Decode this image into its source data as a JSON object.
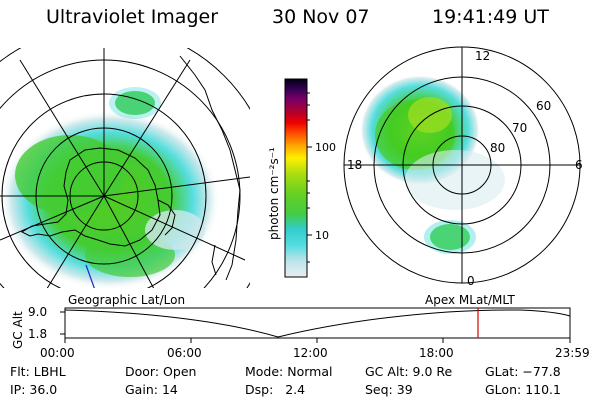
{
  "header": {
    "instrument": "Ultraviolet Imager",
    "date": "30 Nov 07",
    "time": "19:41:49 UT"
  },
  "colorbar": {
    "label": "photon cm⁻²s⁻¹",
    "ticks": [
      "100",
      "10"
    ]
  },
  "left_panel": {
    "caption": "Geographic Lat/Lon"
  },
  "right_panel": {
    "caption": "Apex MLat/MLT",
    "mlt_labels": [
      "12",
      "18",
      "6",
      "0"
    ],
    "mlat_labels": [
      "60",
      "70",
      "80"
    ]
  },
  "altitude_plot": {
    "ylabel": "GC Alt",
    "yticks": [
      "9.0",
      "1.8"
    ],
    "time_ticks": [
      "00:00",
      "06:00",
      "12:00",
      "18:00",
      "23:59"
    ],
    "marker_color": "#e00000"
  },
  "info": {
    "row1": [
      {
        "label": "Flt:",
        "value": "LBHL"
      },
      {
        "label": "Door:",
        "value": "Open"
      },
      {
        "label": "Mode:",
        "value": "Normal"
      },
      {
        "label": "GC Alt:",
        "value": "9.0 Re"
      },
      {
        "label": "GLat:",
        "value": "−77.8"
      }
    ],
    "row2": [
      {
        "label": "IP:",
        "value": "36.0"
      },
      {
        "label": "Gain:",
        "value": "14"
      },
      {
        "label": "Dsp:",
        "value": "2.4"
      },
      {
        "label": "Seq:",
        "value": "39"
      },
      {
        "label": "GLon:",
        "value": "110.1"
      }
    ]
  },
  "colors": {
    "aurora_green": "#44cc22",
    "aurora_yellowgreen": "#99dd22",
    "aurora_cyan": "#55dddd",
    "aurora_pale": "#cfe9ec"
  }
}
